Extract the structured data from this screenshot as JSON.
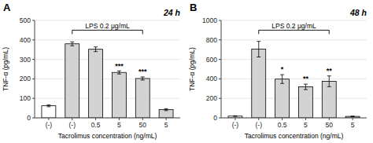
{
  "chart_data": [
    {
      "type": "bar",
      "title": "24 h",
      "subtitle": "A",
      "xlabel": "Tacrolimus concentration (ng/mL)",
      "ylabel": "TNF-α (pg/mL)",
      "categories": [
        "(-)",
        "(-)",
        "0.5",
        "5",
        "50",
        "5"
      ],
      "values": [
        62,
        380,
        352,
        233,
        202,
        42
      ],
      "errors": [
        5,
        10,
        12,
        8,
        8,
        5
      ],
      "colors": [
        "white",
        "#d3d3d3",
        "#d3d3d3",
        "#d3d3d3",
        "#d3d3d3",
        "#d3d3d3"
      ],
      "significance": [
        null,
        null,
        null,
        "***",
        "***",
        null
      ],
      "annotations": [
        {
          "text": "LPS 0.2 μg/mL",
          "from": 1,
          "to": 4,
          "y": 450
        }
      ],
      "ylim": [
        0,
        500
      ],
      "yticks": [
        0,
        100,
        200,
        300,
        400,
        500
      ]
    },
    {
      "type": "bar",
      "title": "48 h",
      "subtitle": "B",
      "xlabel": "Tacrolimus concentration (ng/mL)",
      "ylabel": "TNF-α (pg/mL)",
      "categories": [
        "(-)",
        "(-)",
        "0.5",
        "5",
        "50",
        "5"
      ],
      "values": [
        18,
        705,
        398,
        318,
        375,
        15
      ],
      "errors": [
        3,
        80,
        45,
        28,
        55,
        3
      ],
      "colors": [
        "white",
        "#d3d3d3",
        "#d3d3d3",
        "#d3d3d3",
        "#d3d3d3",
        "#d3d3d3"
      ],
      "significance": [
        null,
        null,
        "*",
        "**",
        "**",
        null
      ],
      "annotations": [
        {
          "text": "LPS 0.2 μg/mL",
          "from": 1,
          "to": 4,
          "y": 900
        }
      ],
      "ylim": [
        0,
        1000
      ],
      "yticks": [
        0,
        200,
        400,
        600,
        800,
        1000
      ]
    }
  ]
}
